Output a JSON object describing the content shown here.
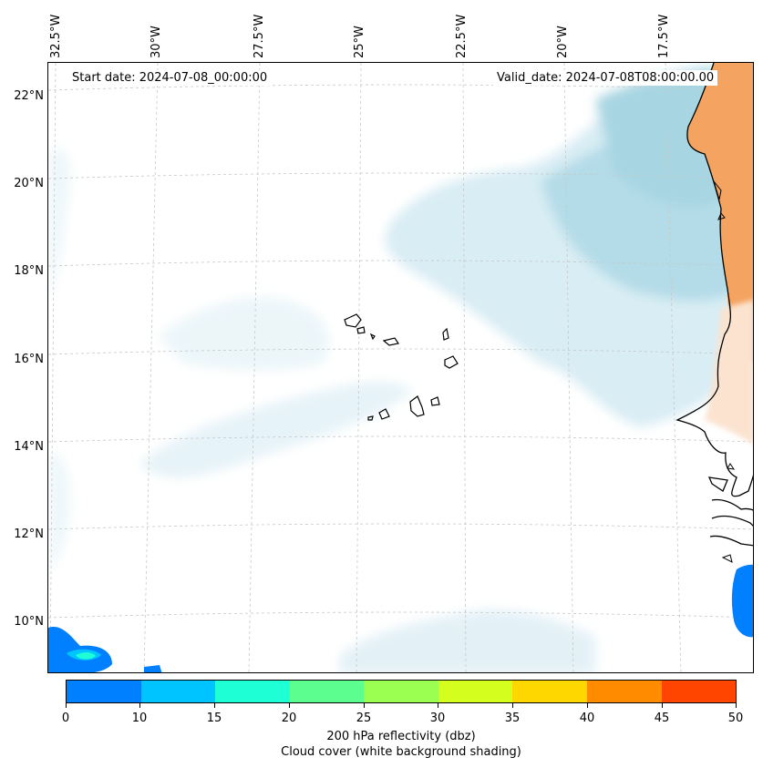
{
  "map": {
    "start_date": "Start date: 2024-07-08_00:00:00",
    "valid_date": "Valid_date: 2024-07-08T08:00:00.00",
    "lon_labels": [
      "32.5°W",
      "30°W",
      "27.5°W",
      "25°W",
      "22.5°W",
      "20°W",
      "17.5°W"
    ],
    "lat_labels": [
      "22°N",
      "20°N",
      "18°N",
      "16°N",
      "14°N",
      "12°N",
      "10°N"
    ],
    "colors": {
      "cloud": "#a8d5e2",
      "land": "#f4a460",
      "coast": "#000000",
      "reflectivity_low": "#0080ff"
    }
  },
  "colorbar": {
    "ticks": [
      "0",
      "10",
      "15",
      "20",
      "25",
      "30",
      "35",
      "40",
      "45",
      "50"
    ],
    "colors": [
      "#0080ff",
      "#00c4ff",
      "#1effd6",
      "#5cff8f",
      "#9bff52",
      "#d4ff1e",
      "#ffd700",
      "#ff8c00",
      "#ff4500"
    ],
    "label": "200 hPa reflectivity (dbz)",
    "sublabel": "Cloud cover (white background shading)"
  }
}
